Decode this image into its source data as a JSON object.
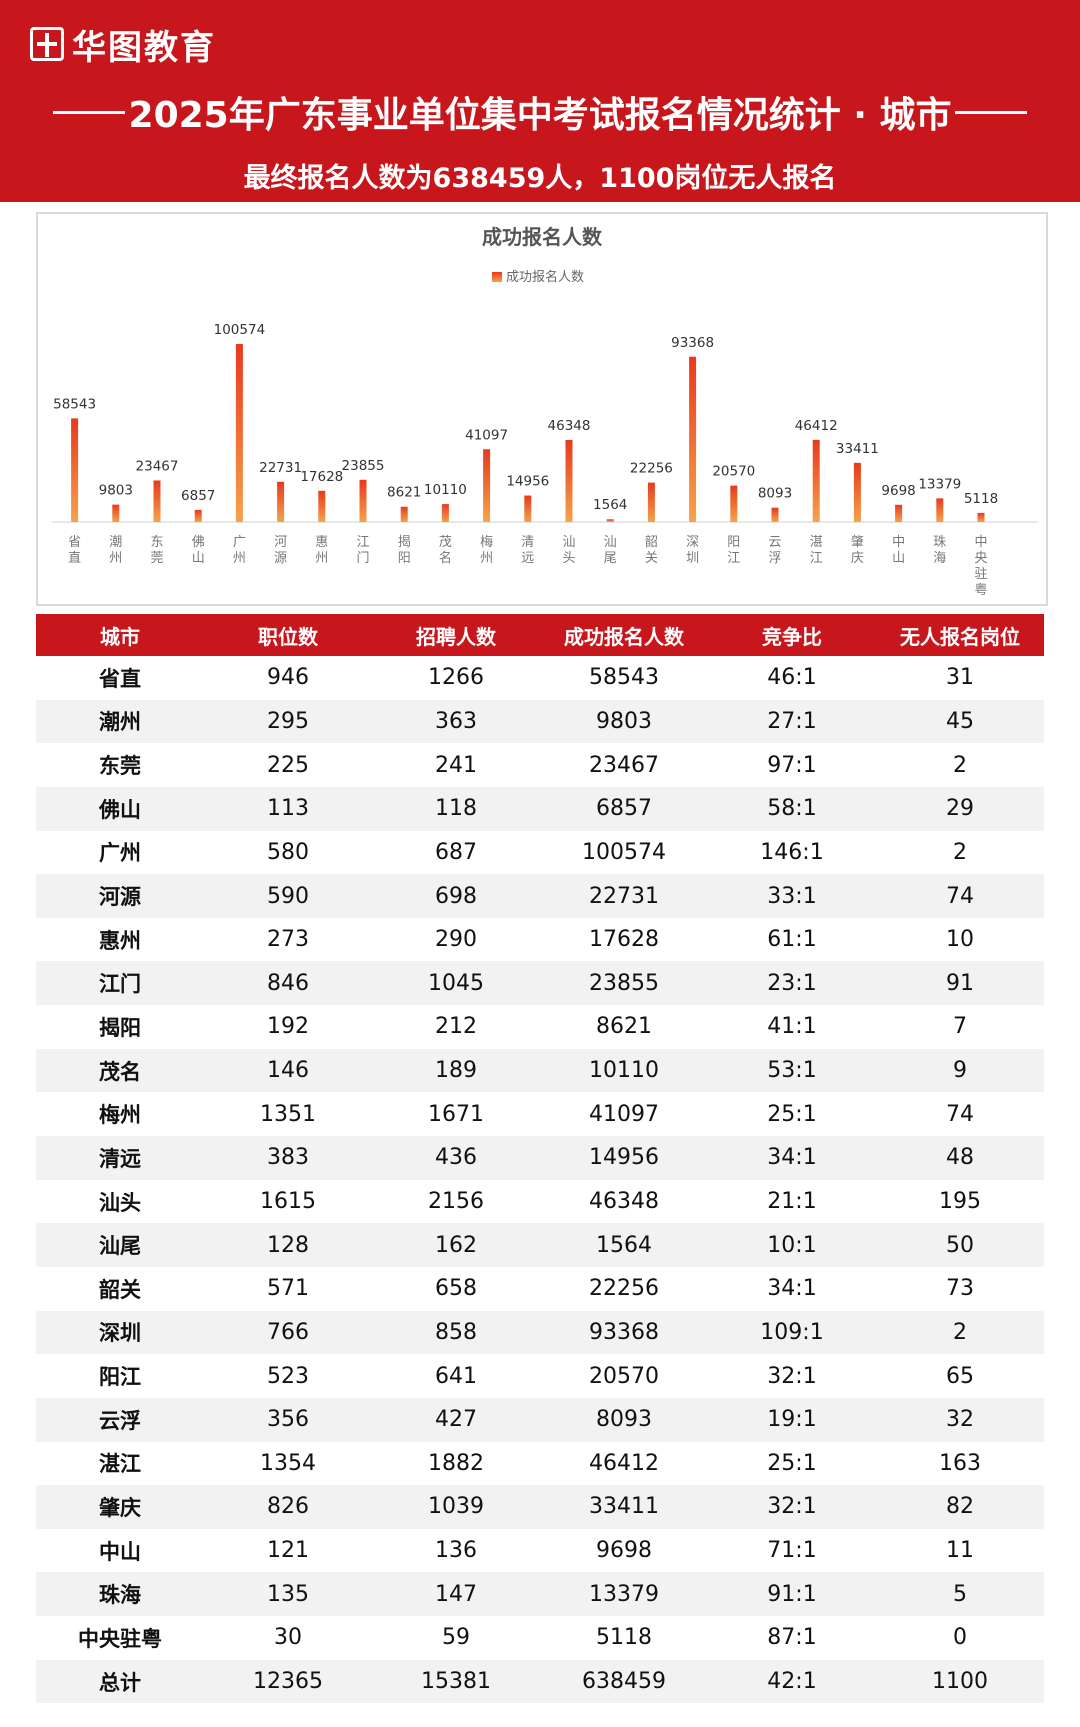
{
  "header": {
    "logo_text": "华图教育",
    "title": "2025年广东事业单位集中考试报名情况统计 · 城市",
    "subtitle": "最终报名人数为638459人，1100岗位无人报名"
  },
  "colors": {
    "brand_red": "#c8161d",
    "bar_top": "#e8391e",
    "bar_bottom": "#f5a34a"
  },
  "chart_data": {
    "type": "bar",
    "title": "成功报名人数",
    "legend": "top-center",
    "series": [
      {
        "name": "成功报名人数",
        "values": [
          58543,
          9803,
          23467,
          6857,
          100574,
          22731,
          17628,
          23855,
          8621,
          10110,
          41097,
          14956,
          46348,
          1564,
          22256,
          93368,
          20570,
          8093,
          46412,
          33411,
          9698,
          13379,
          5118
        ]
      }
    ],
    "categories": [
      "省直",
      "潮州",
      "东莞",
      "佛山",
      "广州",
      "河源",
      "惠州",
      "江门",
      "揭阳",
      "茂名",
      "梅州",
      "清远",
      "汕头",
      "汕尾",
      "韶关",
      "深圳",
      "阳江",
      "云浮",
      "湛江",
      "肇庆",
      "中山",
      "珠海",
      "中央驻粤"
    ],
    "ylim": [
      0,
      100574
    ],
    "grid": false
  },
  "table": {
    "headers": [
      "城市",
      "职位数",
      "招聘人数",
      "成功报名人数",
      "竞争比",
      "无人报名岗位"
    ],
    "rows": [
      [
        "省直",
        "946",
        "1266",
        "58543",
        "46:1",
        "31"
      ],
      [
        "潮州",
        "295",
        "363",
        "9803",
        "27:1",
        "45"
      ],
      [
        "东莞",
        "225",
        "241",
        "23467",
        "97:1",
        "2"
      ],
      [
        "佛山",
        "113",
        "118",
        "6857",
        "58:1",
        "29"
      ],
      [
        "广州",
        "580",
        "687",
        "100574",
        "146:1",
        "2"
      ],
      [
        "河源",
        "590",
        "698",
        "22731",
        "33:1",
        "74"
      ],
      [
        "惠州",
        "273",
        "290",
        "17628",
        "61:1",
        "10"
      ],
      [
        "江门",
        "846",
        "1045",
        "23855",
        "23:1",
        "91"
      ],
      [
        "揭阳",
        "192",
        "212",
        "8621",
        "41:1",
        "7"
      ],
      [
        "茂名",
        "146",
        "189",
        "10110",
        "53:1",
        "9"
      ],
      [
        "梅州",
        "1351",
        "1671",
        "41097",
        "25:1",
        "74"
      ],
      [
        "清远",
        "383",
        "436",
        "14956",
        "34:1",
        "48"
      ],
      [
        "汕头",
        "1615",
        "2156",
        "46348",
        "21:1",
        "195"
      ],
      [
        "汕尾",
        "128",
        "162",
        "1564",
        "10:1",
        "50"
      ],
      [
        "韶关",
        "571",
        "658",
        "22256",
        "34:1",
        "73"
      ],
      [
        "深圳",
        "766",
        "858",
        "93368",
        "109:1",
        "2"
      ],
      [
        "阳江",
        "523",
        "641",
        "20570",
        "32:1",
        "65"
      ],
      [
        "云浮",
        "356",
        "427",
        "8093",
        "19:1",
        "32"
      ],
      [
        "湛江",
        "1354",
        "1882",
        "46412",
        "25:1",
        "163"
      ],
      [
        "肇庆",
        "826",
        "1039",
        "33411",
        "32:1",
        "82"
      ],
      [
        "中山",
        "121",
        "136",
        "9698",
        "71:1",
        "11"
      ],
      [
        "珠海",
        "135",
        "147",
        "13379",
        "91:1",
        "5"
      ],
      [
        "中央驻粤",
        "30",
        "59",
        "5118",
        "87:1",
        "0"
      ],
      [
        "总计",
        "12365",
        "15381",
        "638459",
        "42:1",
        "1100"
      ]
    ]
  }
}
